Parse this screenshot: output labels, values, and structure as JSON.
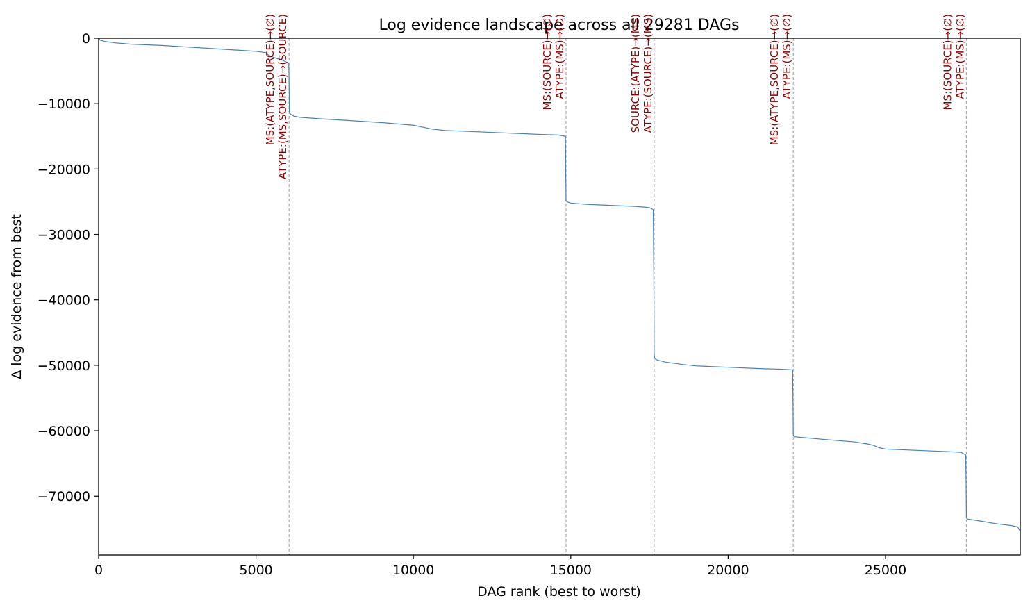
{
  "chart_data": {
    "type": "line",
    "title": "Log evidence landscape across all 29281 DAGs",
    "xlabel": "DAG rank (best to worst)",
    "ylabel": "Δ log evidence from best",
    "xlim": [
      0,
      29281
    ],
    "ylim": [
      -79000,
      0
    ],
    "x_ticks": [
      0,
      5000,
      10000,
      15000,
      20000,
      25000
    ],
    "x_tick_labels": [
      "0",
      "5000",
      "10000",
      "15000",
      "20000",
      "25000"
    ],
    "y_ticks": [
      0,
      -10000,
      -20000,
      -30000,
      -40000,
      -50000,
      -60000,
      -70000
    ],
    "y_tick_labels": [
      "0",
      "−10000",
      "−20000",
      "−30000",
      "−40000",
      "−50000",
      "−60000",
      "−70000"
    ],
    "grid": false,
    "line_color": "#4682b4",
    "vline_color": "#aaaaaa",
    "annotation_color": "#8b0000",
    "series": [
      {
        "x": [
          0,
          50,
          200,
          500,
          1000,
          2000,
          3000,
          4000,
          5000,
          5300,
          5400,
          5600,
          5800,
          5950,
          6040,
          6050,
          6060,
          6080,
          6120,
          6200,
          6400,
          6700,
          7000,
          8000,
          9000,
          10000,
          10300,
          10600,
          11000,
          12000,
          13000,
          14000,
          14600,
          14830,
          14840,
          14850,
          14860,
          14880,
          15000,
          15500,
          16000,
          16500,
          17000,
          17300,
          17500,
          17620,
          17640,
          17650,
          17660,
          17680,
          17750,
          18000,
          18300,
          18600,
          19000,
          20000,
          21000,
          21700,
          22050,
          22060,
          22070,
          22080,
          22100,
          22300,
          23000,
          24000,
          24400,
          24600,
          24800,
          25000,
          26000,
          27000,
          27400,
          27550,
          27560,
          27570,
          27580,
          27600,
          28000,
          28500,
          29000,
          29200,
          29281
        ],
        "y": [
          0,
          -300,
          -500,
          -700,
          -900,
          -1100,
          -1400,
          -1700,
          -2000,
          -2200,
          -2600,
          -3000,
          -3300,
          -3600,
          -3900,
          -7000,
          -11200,
          -11500,
          -11700,
          -11900,
          -12100,
          -12200,
          -12300,
          -12600,
          -12900,
          -13300,
          -13600,
          -13900,
          -14100,
          -14300,
          -14500,
          -14700,
          -14800,
          -15000,
          -20000,
          -24800,
          -24900,
          -25000,
          -25200,
          -25400,
          -25500,
          -25600,
          -25700,
          -25800,
          -25900,
          -26200,
          -37000,
          -48200,
          -48800,
          -49000,
          -49200,
          -49500,
          -49700,
          -49900,
          -50100,
          -50300,
          -50500,
          -50600,
          -50700,
          -55000,
          -60600,
          -60800,
          -60900,
          -61000,
          -61300,
          -61700,
          -62000,
          -62200,
          -62600,
          -62800,
          -63000,
          -63200,
          -63300,
          -63700,
          -68000,
          -73300,
          -73400,
          -73500,
          -73800,
          -74200,
          -74500,
          -74700,
          -75400
        ]
      }
    ],
    "vlines": [
      6050,
      14850,
      17650,
      22070,
      27570
    ],
    "annotations": [
      {
        "x": 6050,
        "lines": [
          "MS:(ATYPE,SOURCE)→(∅)",
          "ATYPE:(MS,SOURCE)→(SOURCE)"
        ]
      },
      {
        "x": 14850,
        "lines": [
          "MS:(SOURCE)→(∅)",
          "ATYPE:(MS)→(∅)"
        ]
      },
      {
        "x": 17650,
        "lines": [
          "SOURCE:(ATYPE)→(MS)",
          "ATYPE:(SOURCE)→(MS)"
        ]
      },
      {
        "x": 22070,
        "lines": [
          "MS:(ATYPE,SOURCE)→(∅)",
          "ATYPE:(MS)→(∅)"
        ]
      },
      {
        "x": 27570,
        "lines": [
          "MS:(SOURCE)→(∅)",
          "ATYPE:(MS)→(∅)"
        ]
      }
    ]
  }
}
